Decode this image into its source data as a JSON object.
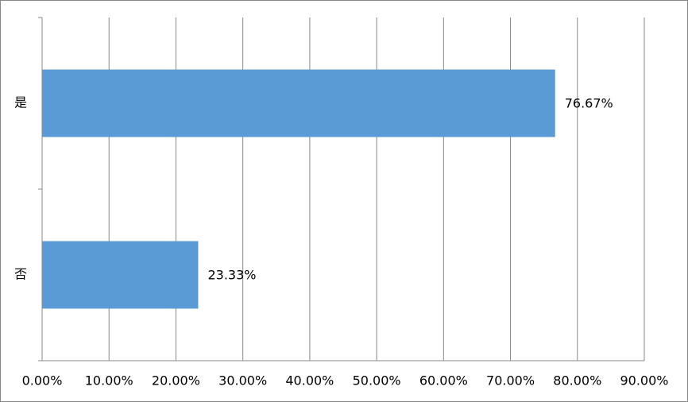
{
  "chart_data": {
    "type": "barh",
    "categories": [
      "是",
      "否"
    ],
    "values": [
      76.67,
      23.33
    ],
    "value_labels": [
      "76.67%",
      "23.33%"
    ],
    "color": "#5b9bd5",
    "xlim": [
      0,
      90
    ],
    "xticks": [
      {
        "value": 0,
        "label": "0.00%"
      },
      {
        "value": 10,
        "label": "10.00%"
      },
      {
        "value": 20,
        "label": "20.00%"
      },
      {
        "value": 30,
        "label": "30.00%"
      },
      {
        "value": 40,
        "label": "40.00%"
      },
      {
        "value": 50,
        "label": "50.00%"
      },
      {
        "value": 60,
        "label": "60.00%"
      },
      {
        "value": 70,
        "label": "70.00%"
      },
      {
        "value": 80,
        "label": "80.00%"
      },
      {
        "value": 90,
        "label": "90.00%"
      }
    ],
    "grid": true
  }
}
